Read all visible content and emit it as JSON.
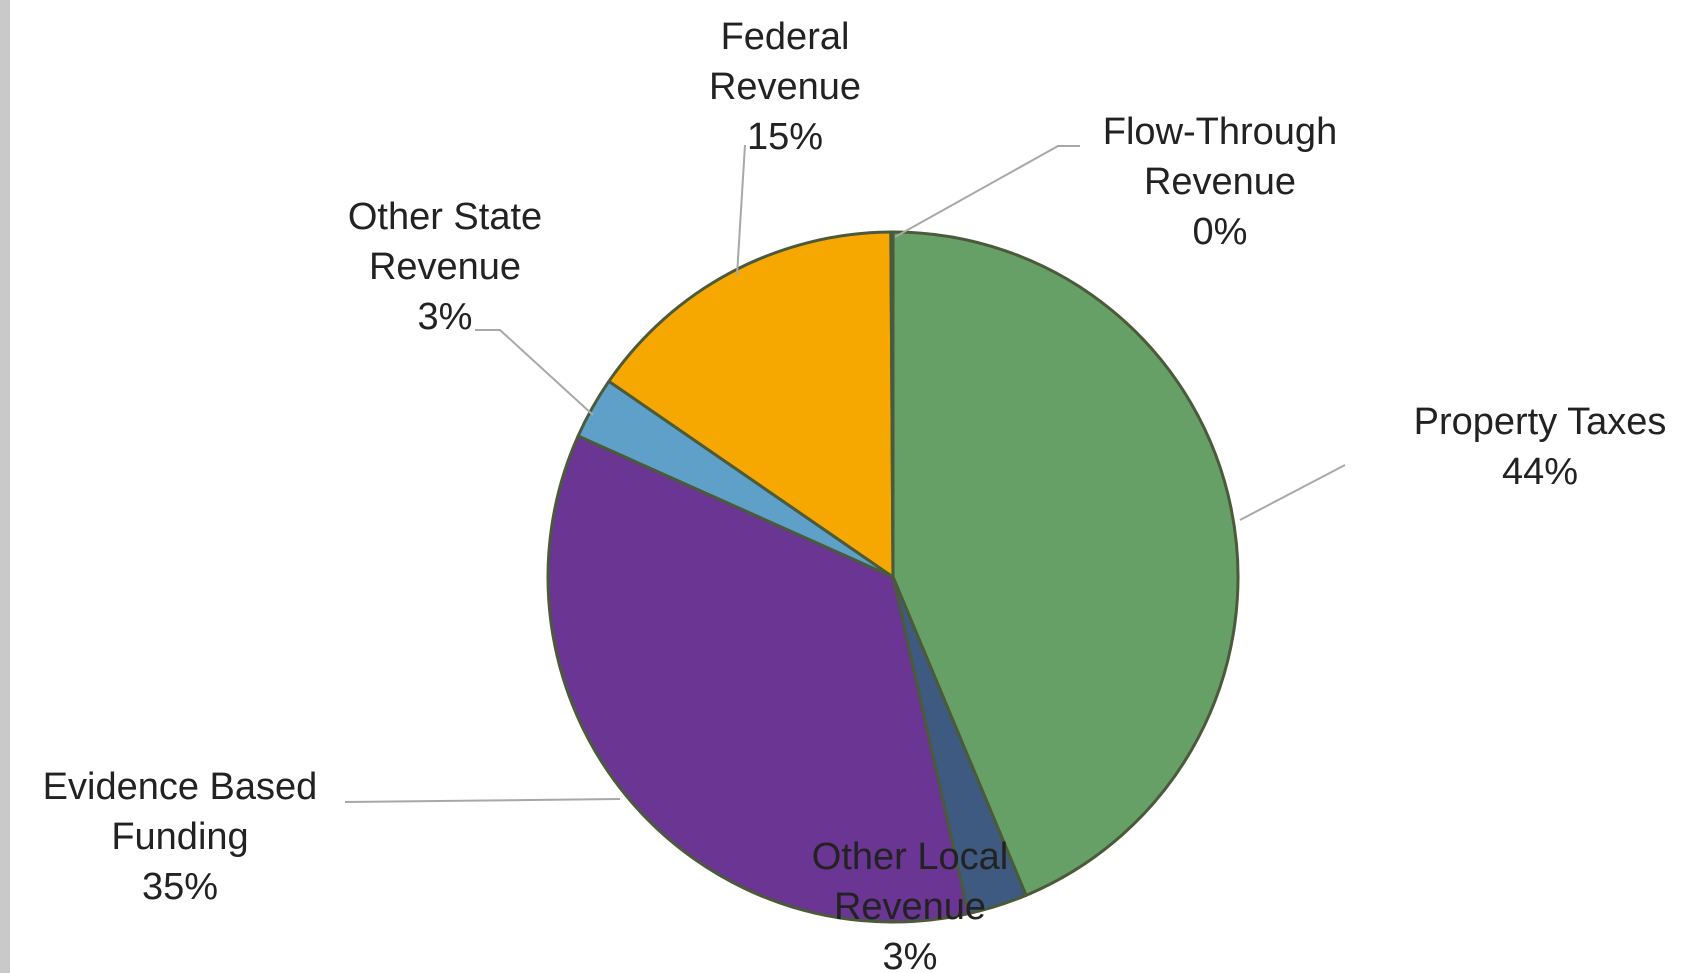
{
  "chart_data": {
    "type": "pie",
    "title": "",
    "slices": [
      {
        "label_lines": [
          "Property Taxes"
        ],
        "pct_text": "44%",
        "value": 43.7,
        "color": "#66a066"
      },
      {
        "label_lines": [
          "Other Local",
          "Revenue"
        ],
        "pct_text": "3%",
        "value": 2.8,
        "color": "#3e5a80"
      },
      {
        "label_lines": [
          "Evidence Based",
          "Funding"
        ],
        "pct_text": "35%",
        "value": 35.2,
        "color": "#6a3593"
      },
      {
        "label_lines": [
          "Other State",
          "Revenue"
        ],
        "pct_text": "3%",
        "value": 2.9,
        "color": "#5fa0c8"
      },
      {
        "label_lines": [
          "Federal",
          "Revenue"
        ],
        "pct_text": "15%",
        "value": 15.3,
        "color": "#f7a800"
      },
      {
        "label_lines": [
          "Flow-Through",
          "Revenue"
        ],
        "pct_text": "0%",
        "value": 0.1,
        "color": "#8c8c8c"
      }
    ],
    "start_angle_deg": 0,
    "direction": "clockwise",
    "slice_border_color": "#4a5a3a",
    "leader_line_color": "#a8a8a8"
  }
}
